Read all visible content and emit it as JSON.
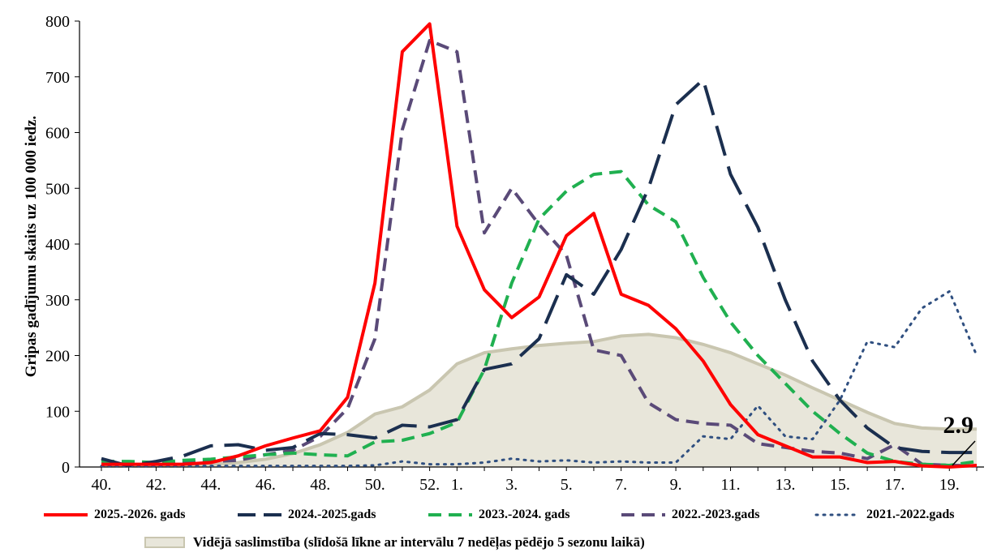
{
  "chart_data": {
    "type": "line",
    "title": "",
    "ylabel": "Gripas gadījumu skaits uz 100 000 iedz.",
    "xlabel": "",
    "ylim": [
      0,
      800
    ],
    "yticks": [
      "0",
      "100",
      "200",
      "300",
      "400",
      "500",
      "600",
      "700",
      "800"
    ],
    "x": [
      "40.",
      "41.",
      "42.",
      "43.",
      "44.",
      "45.",
      "46.",
      "47.",
      "48.",
      "49.",
      "50.",
      "51.",
      "52.",
      "1.",
      "2.",
      "3.",
      "4.",
      "5.",
      "6.",
      "7.",
      "8.",
      "9.",
      "10.",
      "11.",
      "12.",
      "13.",
      "14.",
      "15.",
      "16.",
      "17.",
      "18.",
      "19.",
      "20."
    ],
    "xtick_labels": [
      "40.",
      "",
      "42.",
      "",
      "44.",
      "",
      "46.",
      "",
      "48.",
      "",
      "50.",
      "",
      "52.",
      "1.",
      "",
      "3.",
      "",
      "5.",
      "",
      "7.",
      "",
      "9.",
      "",
      "11.",
      "",
      "13.",
      "",
      "15.",
      "",
      "17.",
      "",
      "19.",
      ""
    ],
    "average": {
      "name": "Vidējā saslimstība (slīdošā līkne ar intervālu 7 nedēļas pēdējo 5 sezonu laikā)",
      "color": "#e8e6da",
      "edge": "#c9c6b0",
      "values": [
        4,
        3,
        3,
        4,
        5,
        8,
        14,
        24,
        40,
        62,
        95,
        108,
        138,
        185,
        205,
        212,
        218,
        222,
        225,
        235,
        238,
        232,
        220,
        205,
        185,
        165,
        142,
        120,
        98,
        78,
        70,
        68,
        68
      ]
    },
    "series": [
      {
        "name": "2025.-2026. gads",
        "color": "#ff0000",
        "style": "solid",
        "width": 4,
        "values": [
          5,
          5,
          5,
          5,
          8,
          20,
          38,
          52,
          65,
          125,
          330,
          745,
          795,
          432,
          318,
          268,
          305,
          415,
          455,
          310,
          290,
          248,
          190,
          112,
          58,
          38,
          18,
          18,
          8,
          10,
          2,
          0,
          2.9
        ]
      },
      {
        "name": "2024.-2025.gads",
        "color": "#1b2f4f",
        "style": "dash-long",
        "width": 4,
        "values": [
          15,
          2,
          10,
          20,
          38,
          40,
          30,
          35,
          60,
          58,
          52,
          75,
          72,
          85,
          175,
          185,
          230,
          345,
          310,
          390,
          500,
          650,
          695,
          525,
          430,
          300,
          190,
          120,
          70,
          35,
          28,
          26,
          26
        ]
      },
      {
        "name": "2023.-2024. gads",
        "color": "#20b050",
        "style": "dash",
        "width": 4,
        "values": [
          10,
          10,
          8,
          12,
          14,
          18,
          22,
          25,
          22,
          20,
          45,
          48,
          60,
          80,
          175,
          330,
          445,
          495,
          525,
          530,
          470,
          440,
          340,
          260,
          200,
          150,
          100,
          60,
          25,
          10,
          5,
          3,
          10
        ]
      },
      {
        "name": "2022.-2023.gads",
        "color": "#5a4a78",
        "style": "dash",
        "width": 4,
        "values": [
          5,
          5,
          5,
          8,
          10,
          12,
          22,
          30,
          55,
          105,
          230,
          605,
          765,
          745,
          420,
          500,
          435,
          380,
          210,
          200,
          115,
          85,
          78,
          75,
          42,
          35,
          28,
          25,
          15,
          40,
          5,
          3,
          2
        ]
      },
      {
        "name": "2021.-2022.gads",
        "color": "#2f4f80",
        "style": "dot",
        "width": 3,
        "values": [
          2,
          2,
          2,
          2,
          2,
          2,
          2,
          2,
          2,
          2,
          3,
          10,
          5,
          5,
          8,
          15,
          10,
          12,
          8,
          10,
          8,
          8,
          55,
          50,
          110,
          55,
          50,
          120,
          225,
          215,
          285,
          315,
          200
        ]
      }
    ],
    "annotation": {
      "text": "2.9",
      "x": "20.",
      "y": 2.9
    },
    "legend_position": "bottom"
  }
}
